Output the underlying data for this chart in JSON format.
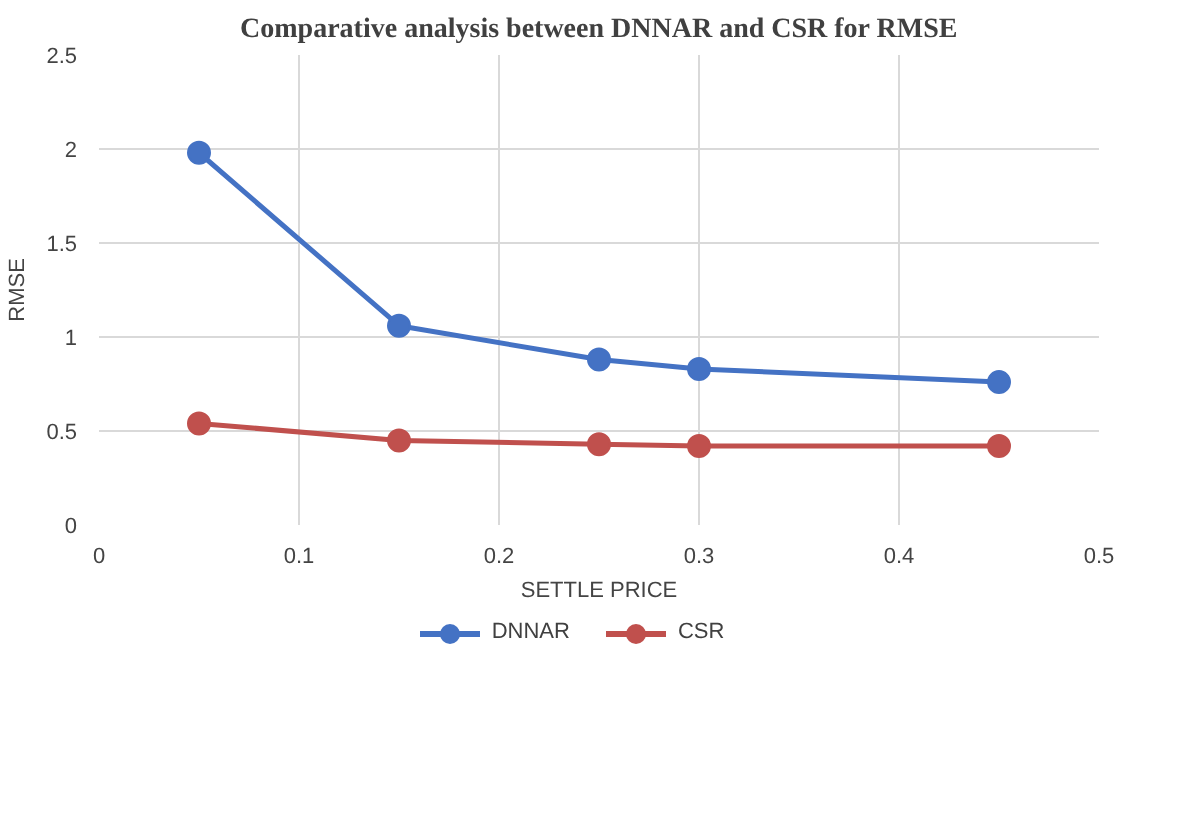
{
  "chart_data": {
    "type": "line",
    "title": "Comparative analysis between DNNAR and CSR for RMSE",
    "xlabel": "SETTLE PRICE",
    "ylabel": "RMSE",
    "x": [
      0.05,
      0.15,
      0.25,
      0.3,
      0.45
    ],
    "series": [
      {
        "name": "DNNAR",
        "color": "#4472c4",
        "values": [
          1.98,
          1.06,
          0.88,
          0.83,
          0.76
        ]
      },
      {
        "name": "CSR",
        "color": "#c0504d",
        "values": [
          0.54,
          0.45,
          0.43,
          0.42,
          0.42
        ]
      }
    ],
    "xlim": [
      0,
      0.5
    ],
    "xticks": [
      0,
      0.1,
      0.2,
      0.3,
      0.4,
      0.5
    ],
    "ylim": [
      0,
      2.5
    ],
    "yticks": [
      0,
      0.5,
      1,
      1.5,
      2,
      2.5
    ],
    "grid": true,
    "legend": "bottom",
    "marker": "circle",
    "line_style": "solid"
  }
}
